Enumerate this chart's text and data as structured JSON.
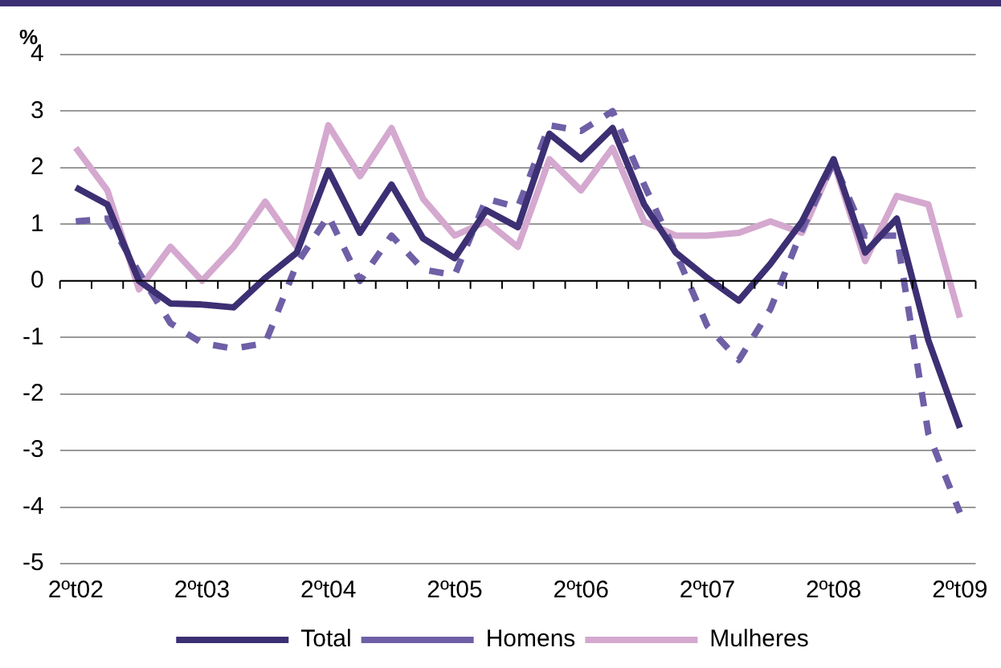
{
  "chart_data": {
    "type": "line",
    "ylabel": "%",
    "categories": [
      "2ºt02",
      null,
      null,
      null,
      "2ºt03",
      null,
      null,
      null,
      "2ºt04",
      null,
      null,
      null,
      "2ºt05",
      null,
      null,
      null,
      "2ºt06",
      null,
      null,
      null,
      "2ºt07",
      null,
      null,
      null,
      "2ºt08",
      null,
      null,
      null,
      "2ºt09"
    ],
    "series": [
      {
        "name": "Total",
        "color": "#3d2f73",
        "line_style": "solid",
        "values": [
          1.65,
          1.35,
          0.0,
          -0.4,
          -0.42,
          -0.47,
          0.05,
          0.5,
          1.95,
          0.85,
          1.7,
          0.75,
          0.4,
          1.25,
          0.95,
          2.6,
          2.15,
          2.7,
          1.35,
          0.5,
          0.05,
          -0.35,
          0.3,
          1.05,
          2.15,
          0.5,
          1.1,
          -1.05,
          -2.6
        ]
      },
      {
        "name": "Homens",
        "color": "#6f5fa6",
        "line_style": "dashed",
        "values": [
          1.05,
          1.1,
          0.15,
          -0.75,
          -1.1,
          -1.2,
          -1.1,
          0.3,
          1.15,
          0.0,
          0.8,
          0.2,
          0.1,
          1.45,
          1.3,
          2.75,
          2.65,
          3.0,
          1.7,
          0.5,
          -0.8,
          -1.4,
          -0.5,
          0.9,
          2.1,
          0.8,
          0.8,
          -2.7,
          -4.1
        ]
      },
      {
        "name": "Mulheres",
        "color": "#d4a8cf",
        "line_style": "solid",
        "values": [
          2.35,
          1.6,
          -0.15,
          0.6,
          0.0,
          0.6,
          1.4,
          0.6,
          2.75,
          1.85,
          2.7,
          1.45,
          0.8,
          1.05,
          0.6,
          2.15,
          1.6,
          2.35,
          1.05,
          0.8,
          0.8,
          0.85,
          1.05,
          0.85,
          2.1,
          0.35,
          1.5,
          1.35,
          -0.65
        ]
      }
    ],
    "ylim": [
      -5,
      4
    ],
    "yticks": [
      -5,
      -4,
      -3,
      -2,
      -1,
      0,
      1,
      2,
      3,
      4
    ],
    "grid": "y",
    "legend": "bottom",
    "marker": "none"
  }
}
